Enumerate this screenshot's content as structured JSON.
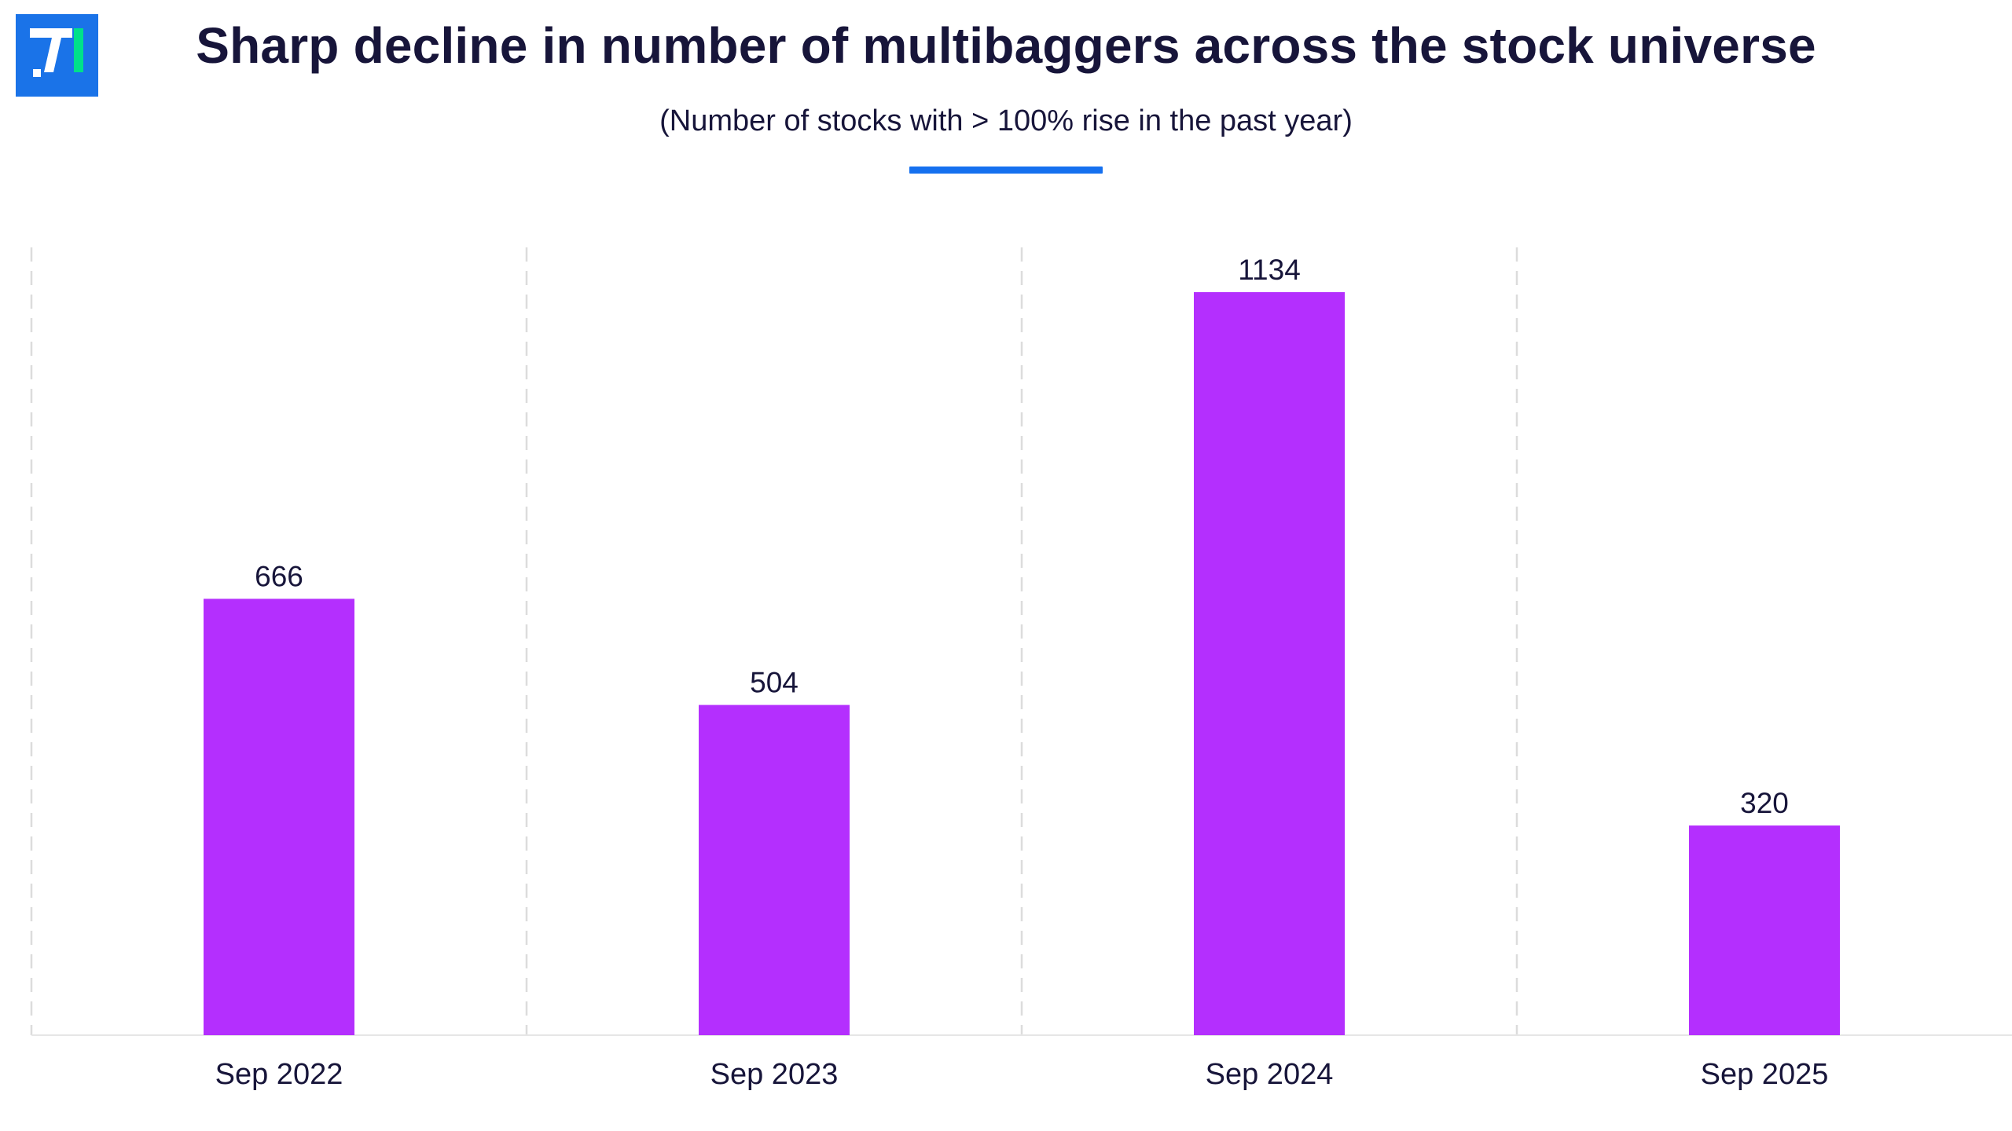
{
  "title": "Sharp decline in number of multibaggers across the stock universe",
  "subtitle": "(Number of stocks with > 100% rise in the past year)",
  "colors": {
    "bar": "#b42ffe",
    "accent": "#1570ef",
    "logo_bg": "#1a73e8",
    "logo_fg": "#ffffff",
    "logo_accent": "#00e08a",
    "text": "#17153a",
    "grid": "#dcdcdc"
  },
  "logo": {
    "icon": "brand-logo-icon"
  },
  "chart_data": {
    "type": "bar",
    "title": "Sharp decline in number of multibaggers across the stock universe",
    "subtitle": "(Number of stocks with > 100% rise in the past year)",
    "categories": [
      "Sep 2022",
      "Sep 2023",
      "Sep 2024",
      "Sep 2025"
    ],
    "values": [
      666,
      504,
      1134,
      320
    ],
    "data_labels": [
      "666",
      "504",
      "1134",
      "320"
    ],
    "xlabel": "",
    "ylabel": "",
    "ylim": [
      0,
      1200
    ],
    "grid": "vertical dashed separators between categories",
    "legend": "none",
    "y_axis_visible": false
  }
}
